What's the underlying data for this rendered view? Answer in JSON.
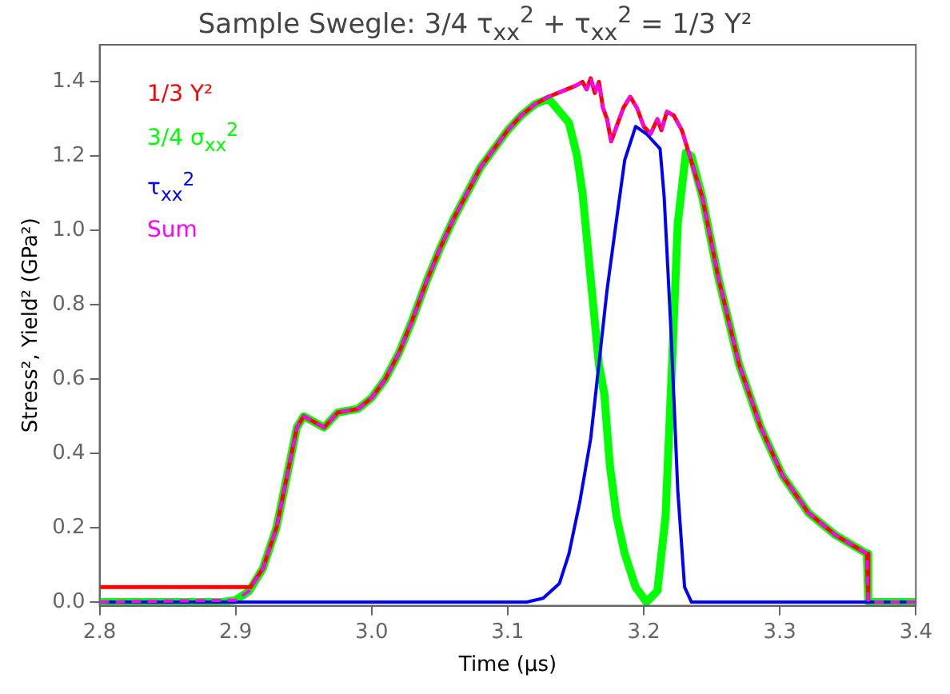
{
  "chart_data": {
    "type": "line",
    "title": "Sample Swegle: 3/4 τ$_{xx}$$^{2}$ + τ$_{xx}$$^{2}$ = 1/3 Y²",
    "xlabel": "Time (μs)",
    "ylabel": "Stress², Yield² (GPa²)",
    "xlim": [
      2.8,
      3.4
    ],
    "xticks": [
      2.8,
      2.9,
      {
        "value": 3,
        "label": "3.0"
      },
      3.1,
      3.2,
      3.3,
      3.4
    ],
    "ylim": [
      -0.01,
      1.5
    ],
    "yticks": [
      {
        "value": 0,
        "label": "0.0"
      },
      0.2,
      0.4,
      0.6,
      0.8,
      {
        "value": 1,
        "label": "1.0"
      },
      1.2,
      1.4
    ],
    "grid": false,
    "legend": "top left",
    "marker": "none",
    "series": [
      {
        "name": "1/3 Y²",
        "color": "#ff0000",
        "line_style": "solid",
        "x": [
          2.8,
          2.911,
          2.92,
          2.93,
          2.94,
          2.945,
          2.95,
          2.96,
          2.965,
          2.975,
          2.99,
          3.0,
          3.01,
          3.02,
          3.03,
          3.04,
          3.05,
          3.06,
          3.07,
          3.08,
          3.09,
          3.1,
          3.11,
          3.12,
          3.13,
          3.14,
          3.15,
          3.155,
          3.158,
          3.161,
          3.164,
          3.167,
          3.17,
          3.173,
          3.176,
          3.18,
          3.185,
          3.19,
          3.195,
          3.2,
          3.205,
          3.21,
          3.213,
          3.217,
          3.222,
          3.228,
          3.233,
          3.243,
          3.255,
          3.27,
          3.286,
          3.302,
          3.321,
          3.341,
          3.364,
          3.365
        ],
        "values": [
          0.04,
          0.04,
          0.09,
          0.2,
          0.38,
          0.47,
          0.5,
          0.48,
          0.47,
          0.51,
          0.52,
          0.55,
          0.6,
          0.67,
          0.76,
          0.86,
          0.95,
          1.03,
          1.1,
          1.17,
          1.22,
          1.27,
          1.31,
          1.34,
          1.36,
          1.375,
          1.39,
          1.4,
          1.38,
          1.41,
          1.37,
          1.4,
          1.33,
          1.3,
          1.24,
          1.28,
          1.33,
          1.36,
          1.33,
          1.28,
          1.26,
          1.3,
          1.27,
          1.32,
          1.31,
          1.27,
          1.21,
          1.09,
          0.87,
          0.64,
          0.47,
          0.34,
          0.24,
          0.18,
          0.13,
          0
        ]
      },
      {
        "name": "3/4 σ$_{xx}$$^{2}$",
        "color": "#00ff00",
        "line_style": "solid",
        "x": [
          2.8,
          2.89,
          2.9,
          2.91,
          2.92,
          2.93,
          2.94,
          2.945,
          2.95,
          2.96,
          2.965,
          2.975,
          2.99,
          3.0,
          3.01,
          3.02,
          3.03,
          3.04,
          3.05,
          3.06,
          3.07,
          3.08,
          3.09,
          3.1,
          3.11,
          3.12,
          3.13,
          3.145,
          3.151,
          3.155,
          3.161,
          3.167,
          3.171,
          3.175,
          3.18,
          3.186,
          3.194,
          3.202,
          3.21,
          3.216,
          3.221,
          3.225,
          3.231,
          3.235,
          3.243,
          3.255,
          3.27,
          3.286,
          3.302,
          3.321,
          3.341,
          3.364,
          3.365,
          3.4
        ],
        "values": [
          0,
          0,
          0.005,
          0.03,
          0.09,
          0.2,
          0.38,
          0.47,
          0.5,
          0.48,
          0.47,
          0.51,
          0.52,
          0.55,
          0.6,
          0.67,
          0.76,
          0.86,
          0.95,
          1.03,
          1.1,
          1.17,
          1.22,
          1.27,
          1.31,
          1.34,
          1.355,
          1.29,
          1.2,
          1.1,
          0.87,
          0.64,
          0.56,
          0.37,
          0.23,
          0.13,
          0.04,
          0,
          0.03,
          0.23,
          0.66,
          1.02,
          1.21,
          1.2,
          1.09,
          0.87,
          0.64,
          0.47,
          0.34,
          0.24,
          0.18,
          0.13,
          0,
          0
        ]
      },
      {
        "name": "τ$_{xx}$$^{2}$",
        "color": "#0000ff",
        "line_style": "solid",
        "x": [
          2.8,
          3.114,
          3.126,
          3.138,
          3.145,
          3.153,
          3.161,
          3.167,
          3.173,
          3.18,
          3.186,
          3.194,
          3.202,
          3.212,
          3.215,
          3.22,
          3.225,
          3.23,
          3.235,
          3.4
        ],
        "values": [
          0,
          0,
          0.01,
          0.05,
          0.13,
          0.27,
          0.44,
          0.64,
          0.84,
          1.03,
          1.19,
          1.28,
          1.26,
          1.22,
          1.09,
          0.73,
          0.3,
          0.04,
          0,
          0
        ]
      },
      {
        "name": "Sum",
        "color": "#ff00ff",
        "line_style": "dashed",
        "x": [
          2.8,
          2.9,
          2.91,
          2.92,
          2.93,
          2.94,
          2.945,
          2.95,
          2.96,
          2.965,
          2.975,
          2.99,
          3.0,
          3.01,
          3.02,
          3.03,
          3.04,
          3.05,
          3.06,
          3.07,
          3.08,
          3.09,
          3.1,
          3.11,
          3.12,
          3.13,
          3.14,
          3.15,
          3.155,
          3.158,
          3.161,
          3.164,
          3.167,
          3.17,
          3.173,
          3.176,
          3.18,
          3.185,
          3.19,
          3.195,
          3.2,
          3.205,
          3.21,
          3.213,
          3.217,
          3.222,
          3.228,
          3.233,
          3.243,
          3.255,
          3.27,
          3.286,
          3.302,
          3.321,
          3.341,
          3.364,
          3.365,
          3.4
        ],
        "values": [
          0,
          0.005,
          0.03,
          0.09,
          0.2,
          0.38,
          0.47,
          0.5,
          0.48,
          0.47,
          0.51,
          0.52,
          0.55,
          0.6,
          0.67,
          0.76,
          0.86,
          0.95,
          1.03,
          1.1,
          1.17,
          1.22,
          1.27,
          1.31,
          1.34,
          1.36,
          1.375,
          1.39,
          1.4,
          1.38,
          1.41,
          1.37,
          1.4,
          1.33,
          1.3,
          1.24,
          1.28,
          1.33,
          1.36,
          1.33,
          1.28,
          1.26,
          1.3,
          1.27,
          1.32,
          1.31,
          1.27,
          1.21,
          1.09,
          0.87,
          0.64,
          0.47,
          0.34,
          0.24,
          0.18,
          0.13,
          0,
          0
        ]
      }
    ]
  }
}
